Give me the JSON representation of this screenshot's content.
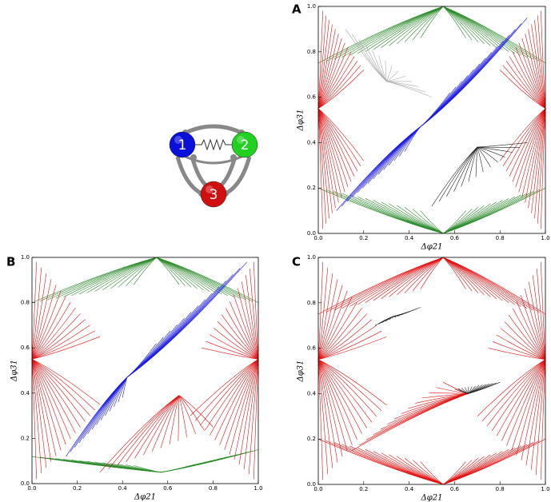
{
  "network": {
    "nodes": [
      {
        "label": "1",
        "color": "#0a10d8"
      },
      {
        "label": "2",
        "color": "#22d022"
      },
      {
        "label": "3",
        "color": "#d01010"
      }
    ]
  },
  "panels": [
    {
      "label": "A",
      "xlabel": "Δφ21",
      "ylabel": "Δφ31",
      "xticks": [
        {
          "value": 0,
          "label": "0.0"
        },
        {
          "value": 0.2,
          "label": "0.2"
        },
        {
          "value": 0.4,
          "label": "0.4"
        },
        {
          "value": 0.6,
          "label": "0.6"
        },
        {
          "value": 0.8,
          "label": "0.8"
        },
        {
          "value": 1,
          "label": "1.0"
        }
      ],
      "yticks": [
        {
          "value": 0,
          "label": "0.0"
        },
        {
          "value": 0.2,
          "label": "0.2"
        },
        {
          "value": 0.4,
          "label": "0.4"
        },
        {
          "value": 0.6,
          "label": "0.6"
        },
        {
          "value": 0.8,
          "label": "0.8"
        },
        {
          "value": 1,
          "label": "1.0"
        }
      ]
    },
    {
      "label": "B",
      "xlabel": "Δφ21",
      "ylabel": "Δφ31",
      "xticks": [
        {
          "value": 0,
          "label": "0.0"
        },
        {
          "value": 0.2,
          "label": "0.2"
        },
        {
          "value": 0.4,
          "label": "0.4"
        },
        {
          "value": 0.6,
          "label": "0.6"
        },
        {
          "value": 0.8,
          "label": "0.8"
        },
        {
          "value": 1,
          "label": "1.0"
        }
      ],
      "yticks": [
        {
          "value": 0,
          "label": "0.0"
        },
        {
          "value": 0.2,
          "label": "0.2"
        },
        {
          "value": 0.4,
          "label": "0.4"
        },
        {
          "value": 0.6,
          "label": "0.6"
        },
        {
          "value": 0.8,
          "label": "0.8"
        },
        {
          "value": 1,
          "label": "1.0"
        }
      ]
    },
    {
      "label": "C",
      "xlabel": "Δφ21",
      "ylabel": "Δφ31",
      "xticks": [
        {
          "value": 0,
          "label": "0.0"
        },
        {
          "value": 0.2,
          "label": "0.2"
        },
        {
          "value": 0.4,
          "label": "0.4"
        },
        {
          "value": 0.6,
          "label": "0.6"
        },
        {
          "value": 0.8,
          "label": "0.8"
        },
        {
          "value": 1,
          "label": "1.0"
        }
      ],
      "yticks": [
        {
          "value": 0,
          "label": "0.0"
        },
        {
          "value": 0.2,
          "label": "0.2"
        },
        {
          "value": 0.4,
          "label": "0.4"
        },
        {
          "value": 0.6,
          "label": "0.6"
        },
        {
          "value": 0.8,
          "label": "0.8"
        },
        {
          "value": 1,
          "label": "1.0"
        }
      ]
    }
  ]
}
